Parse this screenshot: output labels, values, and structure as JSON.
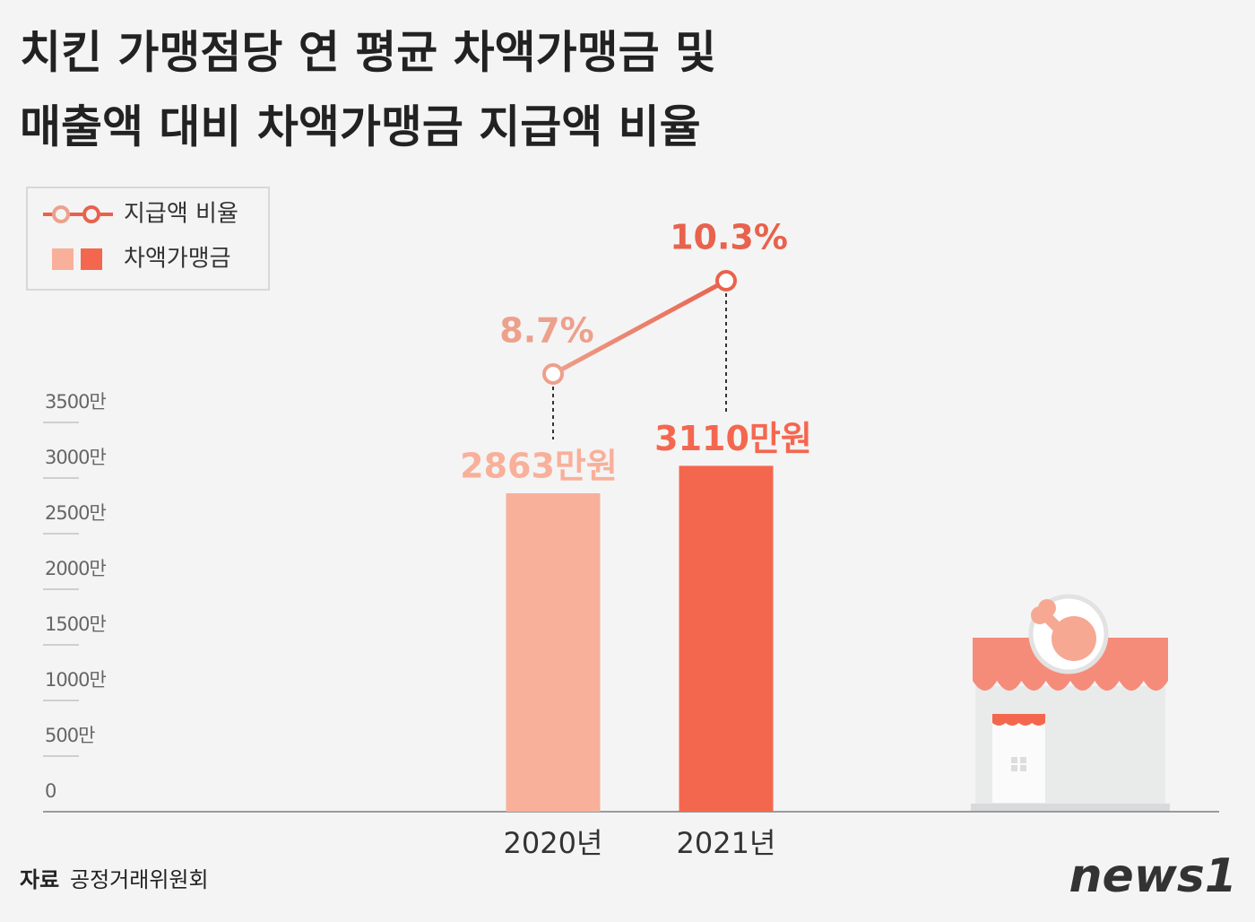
{
  "chart_data": {
    "type": "bar",
    "title": [
      "치킨 가맹점당 연 평균 차액가맹금 및",
      "매출액 대비 차액가맹금 지급액 비율"
    ],
    "categories": [
      "2020년",
      "2021년"
    ],
    "series": [
      {
        "name": "지급액 비율",
        "type": "line",
        "colors": [
          "#eda08c",
          "#e8624d"
        ],
        "values": [
          8.7,
          10.3
        ],
        "value_labels": [
          "8.7%",
          "10.3%"
        ]
      },
      {
        "name": "차액가맹금",
        "type": "bar",
        "colors": [
          "#f8b09b",
          "#f4674f"
        ],
        "values": [
          2863,
          3110
        ],
        "value_labels": [
          "2863만원",
          "3110만원"
        ]
      }
    ],
    "ylim": [
      0,
      3500
    ],
    "yticks": [
      0,
      {
        "value": 500,
        "label": "500만"
      },
      {
        "value": 1000,
        "label": "1000만"
      },
      {
        "value": 1500,
        "label": "1500만"
      },
      {
        "value": 2000,
        "label": "2000만"
      },
      {
        "value": 2500,
        "label": "2500만"
      },
      {
        "value": 3000,
        "label": "3000만"
      },
      {
        "value": 3500,
        "label": "3500만"
      }
    ],
    "legend": "top-left",
    "source_label": "자료",
    "source": "공정거래위원회",
    "brand": "news1"
  }
}
